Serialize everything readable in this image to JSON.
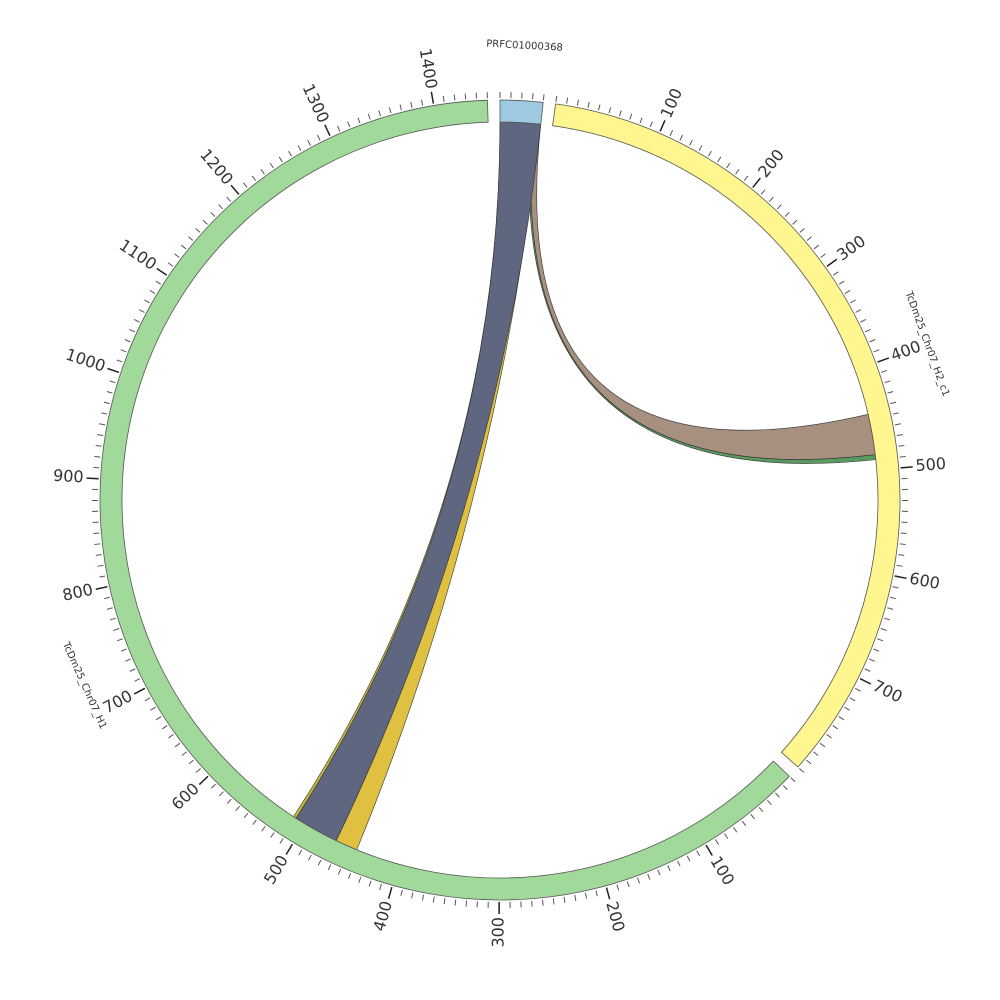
{
  "chart_data": {
    "type": "chord",
    "segments": [
      {
        "name": "PRFC01000368",
        "color": "#9ecae1",
        "length": 40,
        "ticks": [],
        "minor_tick_step": 10
      },
      {
        "name": "TcDm25_Chr07_H2_c1",
        "color": "#fff68f",
        "length": 800,
        "ticks": [
          100,
          200,
          300,
          400,
          500,
          600,
          700
        ],
        "minor_tick_step": 10
      },
      {
        "name": "TcDm25_Chr07_H1",
        "color": "#a1d99b",
        "length": 1450,
        "ticks": [
          100,
          200,
          300,
          400,
          500,
          600,
          700,
          800,
          900,
          1000,
          1100,
          1200,
          1300,
          1400
        ],
        "minor_tick_step": 10
      }
    ],
    "links": [
      {
        "source": 0,
        "source_range": [
          36,
          39
        ],
        "target": 2,
        "target_range": [
          443,
          465
        ],
        "color": "#e0c040"
      },
      {
        "source": 0,
        "source_range": [
          0,
          1
        ],
        "target": 2,
        "target_range": [
          510,
          513
        ],
        "color": "#c8b838"
      },
      {
        "source": 0,
        "source_range": [
          31,
          33
        ],
        "target": 1,
        "target_range": [
          485,
          490
        ],
        "color": "#5a9a60"
      },
      {
        "source": 0,
        "source_range": [
          33,
          40
        ],
        "target": 1,
        "target_range": [
          445,
          485
        ],
        "color": "#a89080"
      },
      {
        "source": 0,
        "source_range": [
          0,
          40
        ],
        "target": 2,
        "target_range": [
          465,
          510
        ],
        "color": "#5f6680"
      }
    ]
  }
}
